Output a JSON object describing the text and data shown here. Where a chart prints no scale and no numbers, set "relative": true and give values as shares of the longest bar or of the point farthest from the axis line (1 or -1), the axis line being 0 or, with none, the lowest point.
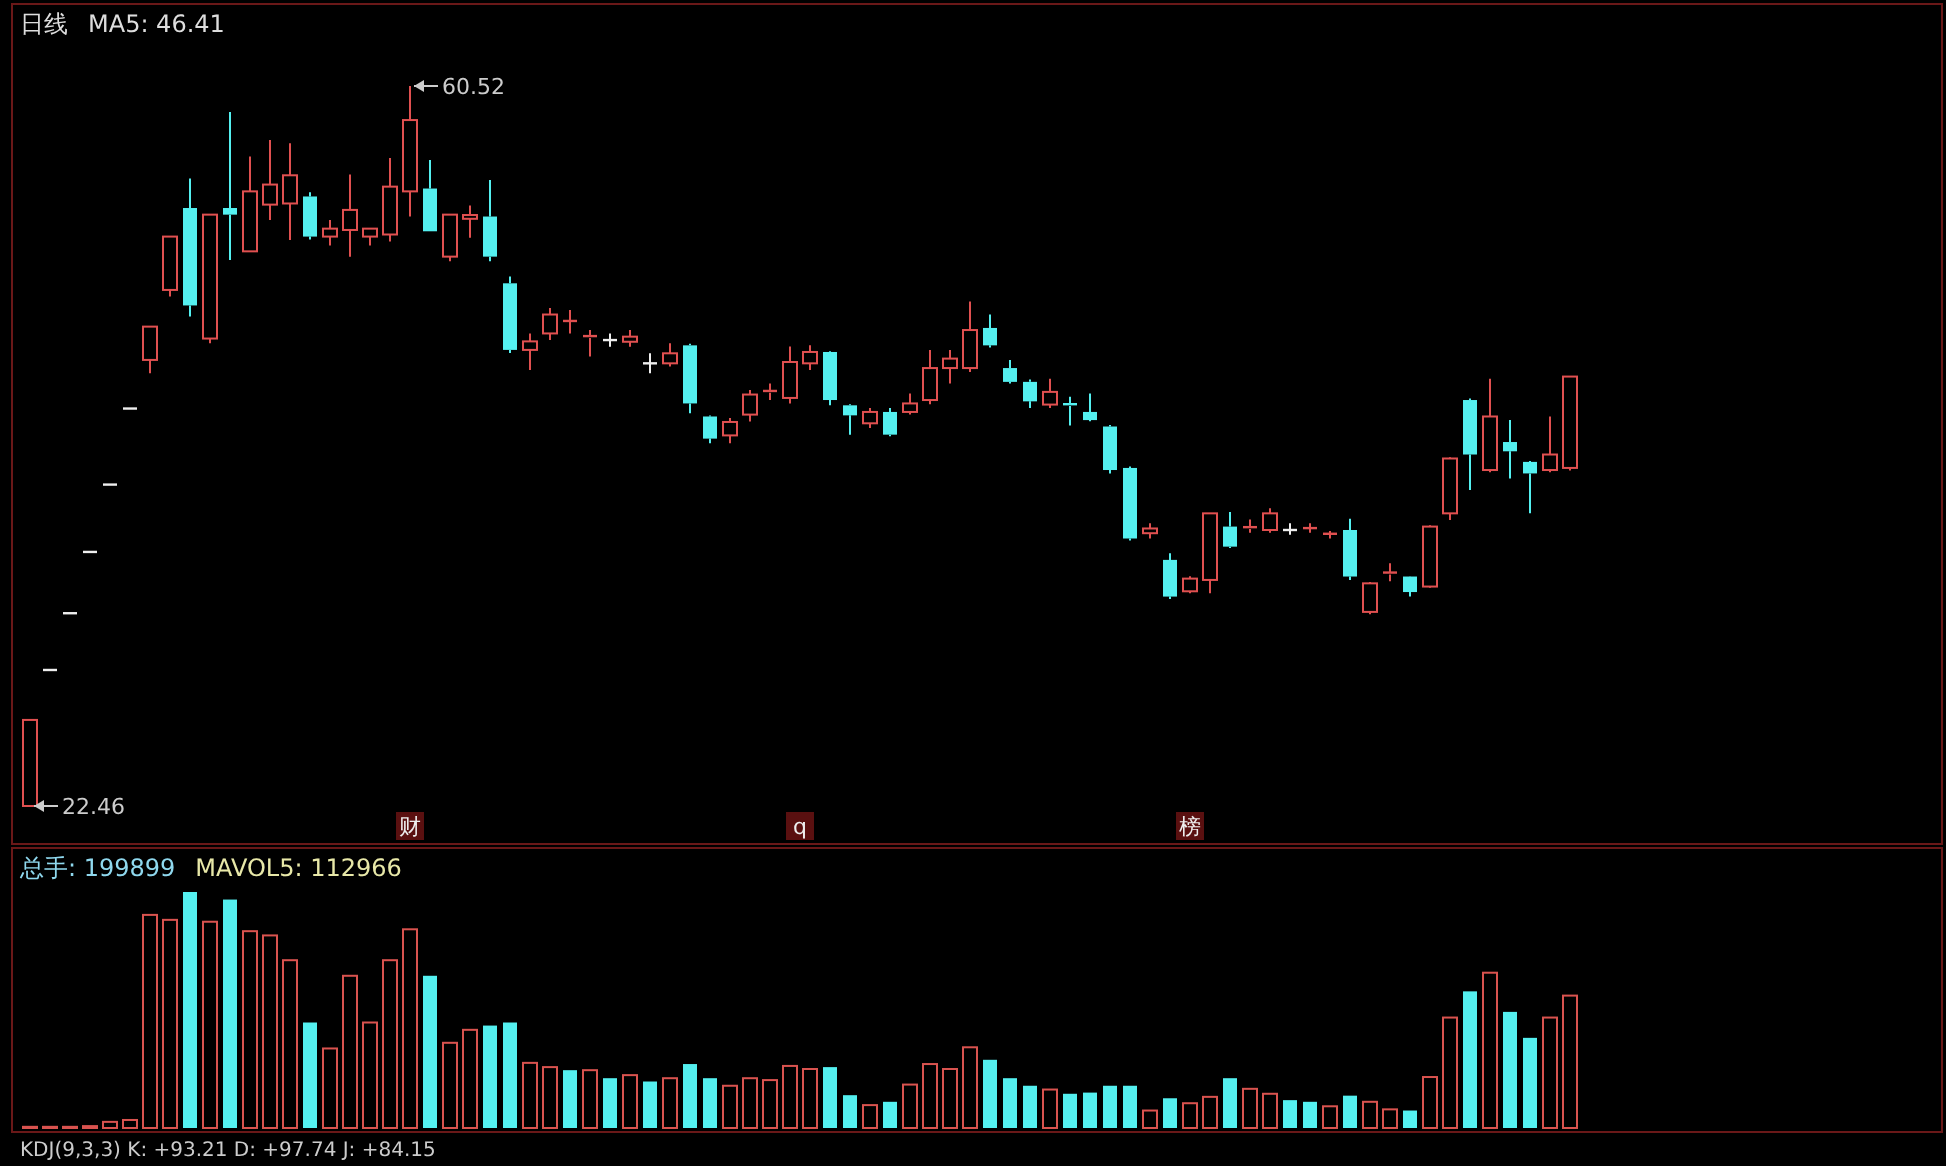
{
  "chart_data": [
    {
      "type": "candlestick",
      "title": "日线",
      "subtitle": "MA5: 46.41",
      "categories": [
        null,
        null,
        null,
        null,
        null,
        null,
        null,
        null,
        null,
        null,
        null,
        null,
        null,
        null,
        null,
        null,
        null,
        null,
        null,
        null,
        null,
        null,
        null,
        null,
        null,
        null,
        null,
        null,
        null,
        null,
        null,
        null,
        null,
        null,
        null,
        null,
        null,
        null,
        null,
        null,
        null,
        null,
        null,
        null,
        null,
        null,
        null,
        null,
        null,
        null,
        null,
        null,
        null,
        null,
        null,
        null,
        null,
        null,
        null,
        null,
        null,
        null,
        null,
        null,
        null,
        null,
        null,
        null,
        null,
        null,
        null,
        null,
        null,
        null,
        null,
        null,
        null,
        null
      ],
      "ohlc": [
        [
          22.46,
          27.01,
          22.46,
          27.01
        ],
        [
          29.65,
          29.65,
          29.65,
          29.65
        ],
        [
          32.65,
          32.65,
          32.65,
          32.65
        ],
        [
          35.89,
          35.89,
          35.89,
          35.89
        ],
        [
          39.45,
          39.45,
          39.45,
          39.45
        ],
        [
          43.47,
          43.47,
          43.47,
          43.47
        ],
        [
          46.04,
          47.8,
          45.33,
          47.8
        ],
        [
          49.74,
          52.56,
          49.39,
          52.56
        ],
        [
          54.07,
          55.63,
          48.33,
          48.92
        ],
        [
          47.17,
          53.72,
          46.92,
          53.72
        ],
        [
          54.07,
          59.15,
          51.32,
          53.72
        ],
        [
          51.78,
          56.79,
          51.78,
          54.95
        ],
        [
          54.25,
          57.67,
          53.44,
          55.31
        ],
        [
          54.31,
          57.49,
          52.38,
          55.8
        ],
        [
          54.68,
          54.9,
          52.4,
          52.56
        ],
        [
          52.56,
          53.44,
          52.09,
          52.98
        ],
        [
          52.91,
          55.84,
          51.5,
          53.97
        ],
        [
          52.56,
          52.98,
          52.09,
          52.98
        ],
        [
          52.67,
          56.71,
          52.3,
          55.2
        ],
        [
          54.95,
          60.52,
          53.62,
          58.72
        ],
        [
          55.1,
          56.61,
          52.84,
          52.84
        ],
        [
          51.5,
          53.72,
          51.25,
          53.72
        ],
        [
          53.5,
          54.2,
          52.5,
          53.7
        ],
        [
          53.62,
          55.55,
          51.25,
          51.5
        ],
        [
          50.09,
          50.45,
          46.4,
          46.57
        ],
        [
          46.57,
          47.44,
          45.51,
          47.02
        ],
        [
          47.44,
          48.79,
          47.09,
          48.44
        ],
        [
          48.05,
          48.68,
          47.44,
          48.1
        ],
        [
          47.2,
          47.62,
          46.22,
          47.3
        ],
        [
          47.09,
          47.44,
          46.74,
          47.09
        ],
        [
          47.0,
          47.62,
          46.74,
          47.27
        ],
        [
          45.86,
          46.39,
          45.33,
          45.86
        ],
        [
          45.86,
          46.92,
          45.69,
          46.39
        ],
        [
          46.81,
          46.9,
          43.22,
          43.74
        ],
        [
          43.05,
          43.1,
          41.63,
          41.88
        ],
        [
          42.05,
          42.97,
          41.63,
          42.76
        ],
        [
          43.15,
          44.45,
          42.79,
          44.21
        ],
        [
          44.3,
          44.8,
          43.92,
          44.4
        ],
        [
          44.03,
          46.75,
          43.74,
          45.93
        ],
        [
          45.86,
          46.81,
          45.51,
          46.46
        ],
        [
          46.46,
          46.5,
          43.64,
          43.92
        ],
        [
          43.64,
          43.7,
          42.09,
          43.11
        ],
        [
          42.69,
          43.5,
          42.44,
          43.29
        ],
        [
          43.29,
          43.5,
          42.0,
          42.09
        ],
        [
          43.29,
          44.27,
          43.15,
          43.74
        ],
        [
          43.92,
          46.57,
          43.7,
          45.61
        ],
        [
          45.61,
          46.57,
          44.8,
          46.11
        ],
        [
          45.61,
          49.13,
          45.4,
          47.62
        ],
        [
          47.73,
          48.44,
          46.7,
          46.81
        ],
        [
          45.61,
          46.04,
          44.8,
          44.88
        ],
        [
          44.88,
          45.0,
          43.5,
          43.85
        ],
        [
          43.68,
          45.05,
          43.5,
          44.35
        ],
        [
          43.7,
          44.1,
          42.58,
          43.6
        ],
        [
          43.29,
          44.27,
          42.8,
          42.86
        ],
        [
          42.52,
          42.6,
          40.04,
          40.22
        ],
        [
          40.33,
          40.4,
          36.5,
          36.6
        ],
        [
          36.88,
          37.4,
          36.6,
          37.13
        ],
        [
          35.47,
          35.82,
          33.4,
          33.53
        ],
        [
          33.81,
          34.6,
          33.7,
          34.48
        ],
        [
          34.41,
          37.93,
          33.7,
          37.93
        ],
        [
          37.23,
          38.0,
          36.1,
          36.17
        ],
        [
          37.1,
          37.6,
          36.9,
          37.2
        ],
        [
          37.05,
          38.2,
          36.9,
          37.93
        ],
        [
          37.05,
          37.4,
          36.8,
          37.05
        ],
        [
          37.1,
          37.4,
          36.9,
          37.15
        ],
        [
          36.8,
          37.0,
          36.6,
          36.85
        ],
        [
          37.05,
          37.65,
          34.41,
          34.59
        ],
        [
          32.72,
          34.3,
          32.6,
          34.23
        ],
        [
          34.7,
          35.29,
          34.34,
          34.8
        ],
        [
          34.59,
          34.6,
          33.53,
          33.77
        ],
        [
          34.06,
          37.3,
          34.0,
          37.23
        ],
        [
          37.93,
          40.9,
          37.58,
          40.83
        ],
        [
          43.92,
          44.0,
          39.17,
          41.04
        ],
        [
          40.22,
          45.05,
          40.1,
          43.05
        ],
        [
          41.7,
          42.87,
          39.77,
          41.21
        ],
        [
          40.65,
          40.7,
          37.93,
          40.04
        ],
        [
          40.22,
          43.05,
          40.1,
          41.04
        ],
        [
          40.33,
          45.16,
          40.2,
          45.16
        ]
      ],
      "annotations": [
        "60.52",
        "22.46",
        "财",
        "q",
        "榜"
      ]
    },
    {
      "type": "bar",
      "relative": true,
      "title": "总手: 199899",
      "subtitle": "MAVOL5: 112966",
      "categories": [
        null,
        null,
        null,
        null,
        null,
        null,
        null,
        null,
        null,
        null,
        null,
        null,
        null,
        null,
        null,
        null,
        null,
        null,
        null,
        null,
        null,
        null,
        null,
        null,
        null,
        null,
        null,
        null,
        null,
        null,
        null,
        null,
        null,
        null,
        null,
        null,
        null,
        null,
        null,
        null,
        null,
        null,
        null,
        null,
        null,
        null,
        null,
        null,
        null,
        null,
        null,
        null,
        null,
        null,
        null,
        null,
        null,
        null,
        null,
        null,
        null,
        null,
        null,
        null,
        null,
        null,
        null,
        null,
        null,
        null,
        null,
        null,
        null,
        null,
        null,
        null,
        null,
        null
      ],
      "series": [
        {
          "values": [
            0.005,
            0.005,
            0.005,
            0.008,
            0.026,
            0.034,
            0.903,
            0.882,
            1,
            0.874,
            0.968,
            0.834,
            0.816,
            0.711,
            0.447,
            0.337,
            0.645,
            0.447,
            0.711,
            0.842,
            0.645,
            0.361,
            0.416,
            0.434,
            0.447,
            0.276,
            0.258,
            0.245,
            0.245,
            0.211,
            0.224,
            0.197,
            0.211,
            0.271,
            0.211,
            0.179,
            0.211,
            0.203,
            0.263,
            0.25,
            0.258,
            0.139,
            0.097,
            0.111,
            0.184,
            0.271,
            0.25,
            0.342,
            0.289,
            0.211,
            0.179,
            0.163,
            0.145,
            0.15,
            0.179,
            0.179,
            0.074,
            0.126,
            0.105,
            0.132,
            0.211,
            0.166,
            0.145,
            0.118,
            0.111,
            0.092,
            0.137,
            0.111,
            0.079,
            0.074,
            0.216,
            0.468,
            0.579,
            0.658,
            0.492,
            0.382,
            0.468,
            0.561
          ],
          "colors": [
            "#d9534f",
            "#d9534f",
            "#d9534f",
            "#d9534f",
            "#d9534f",
            "#d9534f",
            "#d9534f",
            "#d9534f",
            "#54f0f0",
            "#d9534f",
            "#54f0f0",
            "#d9534f",
            "#d9534f",
            "#d9534f",
            "#54f0f0",
            "#d9534f",
            "#d9534f",
            "#d9534f",
            "#d9534f",
            "#d9534f",
            "#54f0f0",
            "#d9534f",
            "#d9534f",
            "#54f0f0",
            "#54f0f0",
            "#d9534f",
            "#d9534f",
            "#54f0f0",
            "#d9534f",
            "#54f0f0",
            "#d9534f",
            "#54f0f0",
            "#d9534f",
            "#54f0f0",
            "#54f0f0",
            "#d9534f",
            "#d9534f",
            "#d9534f",
            "#d9534f",
            "#d9534f",
            "#54f0f0",
            "#54f0f0",
            "#d9534f",
            "#54f0f0",
            "#d9534f",
            "#d9534f",
            "#d9534f",
            "#d9534f",
            "#54f0f0",
            "#54f0f0",
            "#54f0f0",
            "#d9534f",
            "#54f0f0",
            "#54f0f0",
            "#54f0f0",
            "#54f0f0",
            "#d9534f",
            "#54f0f0",
            "#d9534f",
            "#d9534f",
            "#54f0f0",
            "#d9534f",
            "#d9534f",
            "#54f0f0",
            "#54f0f0",
            "#d9534f",
            "#54f0f0",
            "#d9534f",
            "#d9534f",
            "#54f0f0",
            "#d9534f",
            "#d9534f",
            "#54f0f0",
            "#d9534f",
            "#54f0f0",
            "#54f0f0",
            "#d9534f",
            "#d9534f"
          ]
        }
      ],
      "annotations": [
        "KDJ(9,3,3) K: +93.21  D: +97.74  J: +84.15"
      ]
    }
  ]
}
